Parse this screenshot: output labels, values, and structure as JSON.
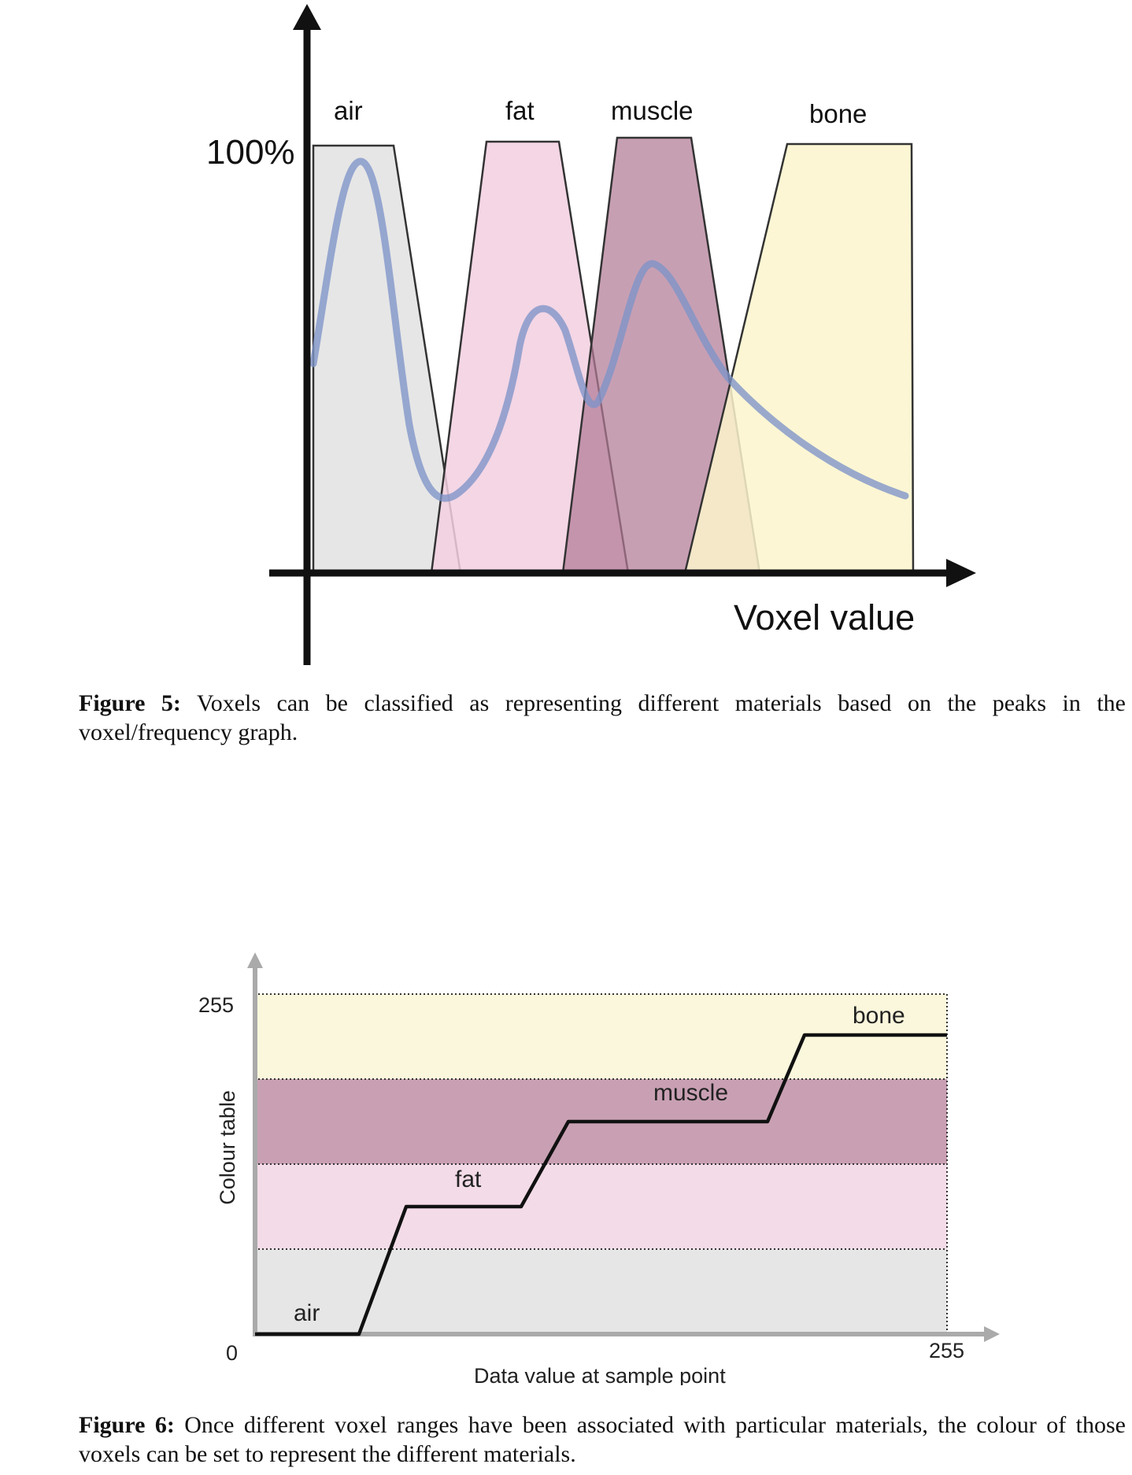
{
  "figure5": {
    "title_percent": "100%",
    "x_axis_label": "Voxel value",
    "materials": [
      {
        "label": "air",
        "color": "#e4e4e4"
      },
      {
        "label": "fat",
        "color": "#f3d5e4"
      },
      {
        "label": "muscle",
        "color": "#c496aa"
      },
      {
        "label": "bone",
        "color": "#fcf8d8"
      }
    ],
    "curve_color": "#8a9ccc",
    "caption_label": "Figure 5:",
    "caption_text": " Voxels can be classified as representing different materials based on the peaks in the voxel/frequency graph."
  },
  "figure6": {
    "y_axis_label": "Colour table",
    "x_axis_label": "Data value at sample point",
    "y_max_label": "255",
    "origin_label": "0",
    "x_max_label": "255",
    "bands": [
      {
        "label": "air",
        "color": "#e6e6e6"
      },
      {
        "label": "fat",
        "color": "#f3dbe7"
      },
      {
        "label": "muscle",
        "color": "#c9a0b3"
      },
      {
        "label": "bone",
        "color": "#fbf7dc"
      }
    ],
    "caption_label": "Figure 6:",
    "caption_text": " Once different voxel ranges have been associated with particular materials, the colour of those voxels can be set to represent the different materials."
  }
}
